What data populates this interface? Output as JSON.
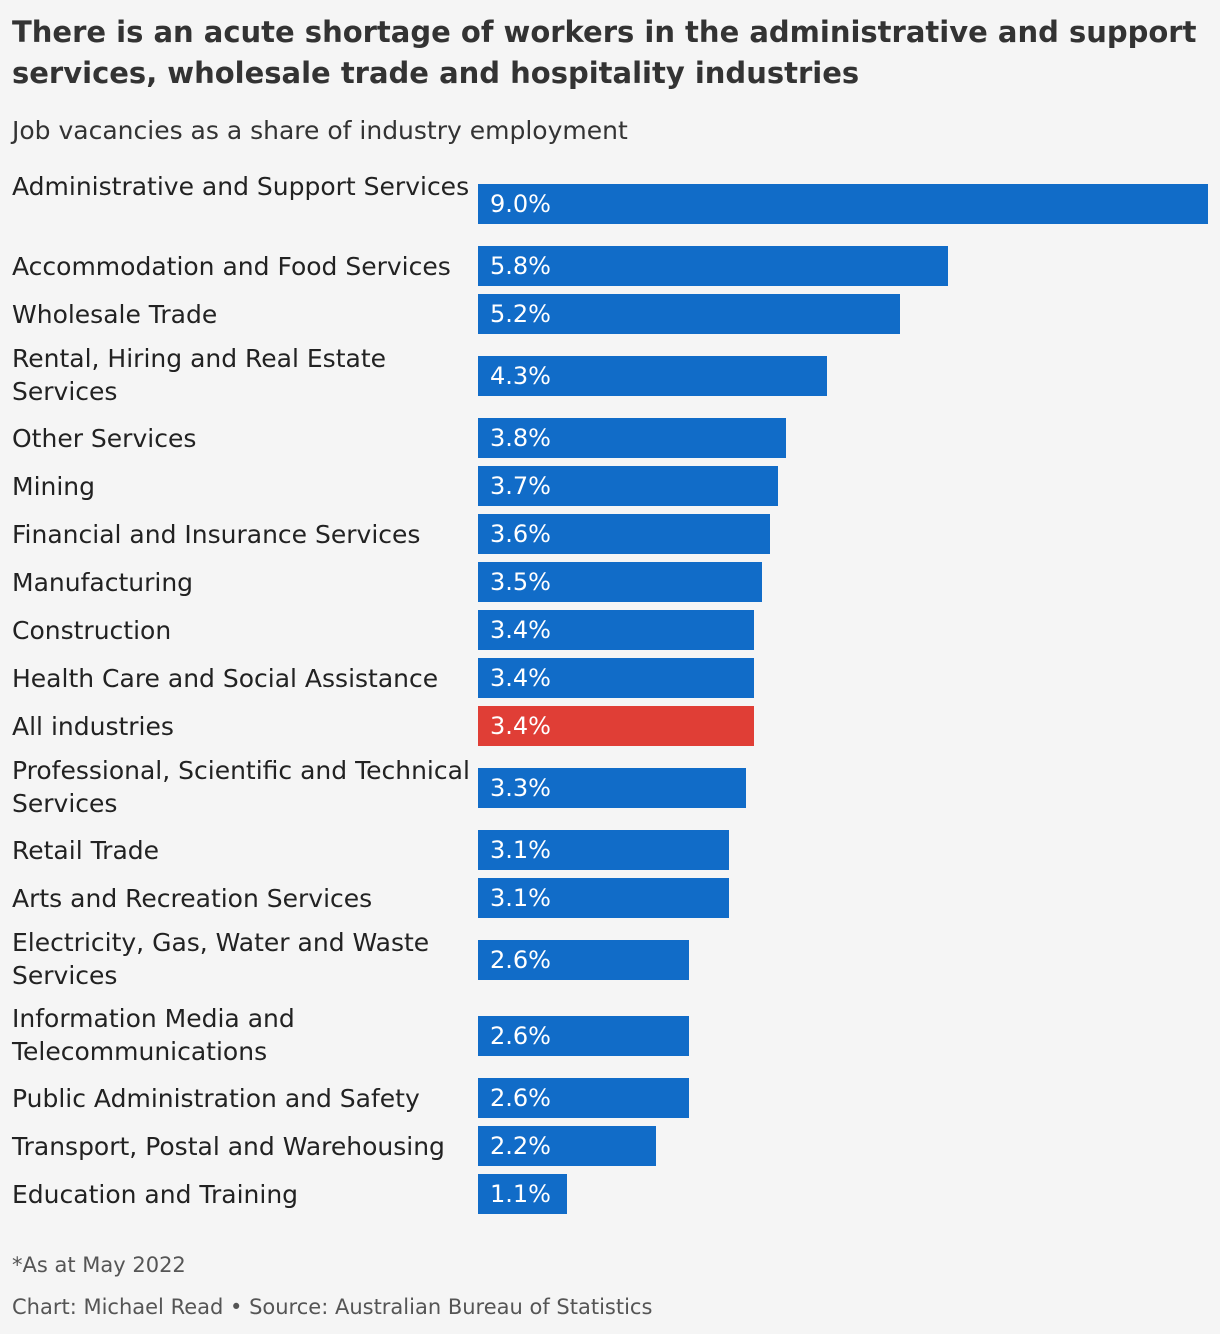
{
  "chart_data": {
    "type": "bar",
    "orientation": "horizontal",
    "title": "There is an acute shortage of workers in the administrative and support services, wholesale trade and hospitality industries",
    "subtitle": "Job vacancies as a share of industry employment",
    "value_suffix": "%",
    "xlim": [
      0,
      9.0
    ],
    "colors": {
      "default": "#116cc8",
      "highlight": "#e03e36"
    },
    "highlight_category": "All industries",
    "categories": [
      "Administrative and Support Services",
      "Accommodation and Food Services",
      "Wholesale Trade",
      "Rental, Hiring and Real Estate Services",
      "Other Services",
      "Mining",
      "Financial and Insurance Services",
      "Manufacturing",
      "Construction",
      "Health Care and Social Assistance",
      "All industries",
      "Professional, Scientific and Technical Services",
      "Retail Trade",
      "Arts and Recreation Services",
      "Electricity, Gas, Water and Waste Services",
      "Information Media and Telecommunications",
      "Public Administration and Safety",
      "Transport, Postal and Warehousing",
      "Education and Training"
    ],
    "values": [
      9.0,
      5.8,
      5.2,
      4.3,
      3.8,
      3.7,
      3.6,
      3.5,
      3.4,
      3.4,
      3.4,
      3.3,
      3.1,
      3.1,
      2.6,
      2.6,
      2.6,
      2.2,
      1.1
    ],
    "data_labels": [
      "9.0%",
      "5.8%",
      "5.2%",
      "4.3%",
      "3.8%",
      "3.7%",
      "3.6%",
      "3.5%",
      "3.4%",
      "3.4%",
      "3.4%",
      "3.3%",
      "3.1%",
      "3.1%",
      "2.6%",
      "2.6%",
      "2.6%",
      "2.2%",
      "1.1%"
    ]
  },
  "footer": {
    "note": "*As at May 2022",
    "source": "Chart: Michael Read • Source: Australian Bureau of Statistics"
  }
}
